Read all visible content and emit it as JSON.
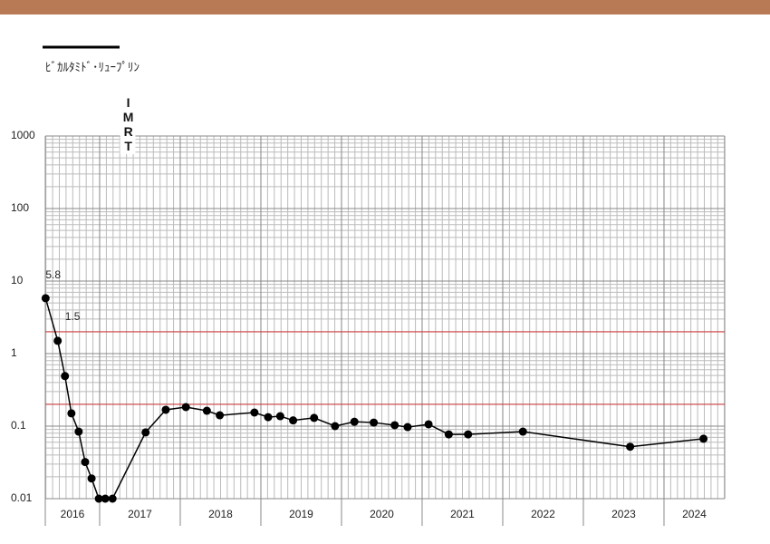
{
  "chart_data": {
    "type": "line",
    "series": [
      {
        "name": "ﾋﾞｶﾙﾀﾐﾄﾞ･ﾘｭｰﾌﾟﾘﾝ",
        "color": "#000000",
        "x": [
          2016.33,
          2016.48,
          2016.57,
          2016.65,
          2016.74,
          2016.82,
          2016.9,
          2016.99,
          2017.07,
          2017.16,
          2017.57,
          2017.82,
          2018.07,
          2018.33,
          2018.49,
          2018.92,
          2019.09,
          2019.24,
          2019.4,
          2019.66,
          2019.92,
          2020.16,
          2020.4,
          2020.66,
          2020.82,
          2021.08,
          2021.33,
          2021.57,
          2022.25,
          2023.58,
          2024.49
        ],
        "values": [
          5.8,
          1.5,
          0.49,
          0.15,
          0.084,
          0.032,
          0.019,
          0.01,
          0.01,
          0.01,
          0.082,
          0.168,
          0.183,
          0.163,
          0.141,
          0.154,
          0.133,
          0.137,
          0.12,
          0.13,
          0.1,
          0.115,
          0.112,
          0.103,
          0.097,
          0.106,
          0.077,
          0.077,
          0.084,
          0.052,
          0.067
        ],
        "value_labels": [
          "5.8",
          "1.5",
          null,
          null,
          null,
          null,
          null,
          null,
          null,
          null,
          null,
          null,
          null,
          null,
          null,
          null,
          null,
          null,
          null,
          null,
          null,
          null,
          null,
          null,
          null,
          null,
          null,
          null,
          null,
          null,
          null
        ]
      }
    ],
    "xlim": [
      2016.326,
      2024.753
    ],
    "xticks": [
      2016,
      2017,
      2018,
      2019,
      2020,
      2021,
      2022,
      2023,
      2024
    ],
    "ylim": [
      0.01,
      1000
    ],
    "yticks": [
      0.01,
      0.1,
      1,
      10,
      100,
      1000
    ],
    "log_y": true,
    "grid": true,
    "reference_lines": [
      {
        "value": 2,
        "color": "#d04040"
      },
      {
        "value": 0.2,
        "color": "#d04040"
      }
    ],
    "annotations": [
      {
        "text": "IMRT",
        "x": 2017.35
      }
    ]
  }
}
